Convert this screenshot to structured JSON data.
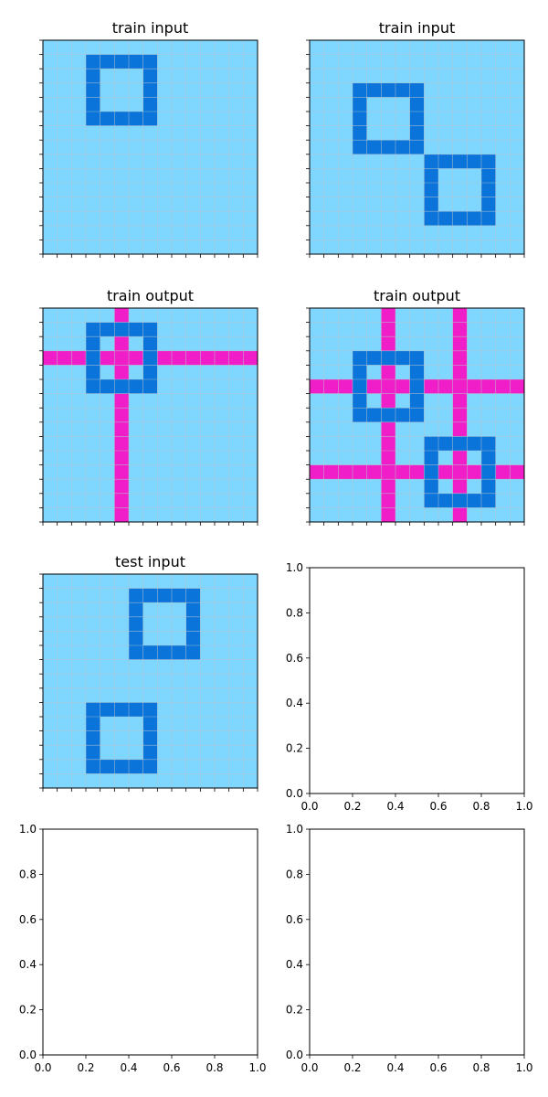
{
  "panels": [
    {
      "title": "train input",
      "kind": "grid",
      "rects": [
        [
          1,
          3,
          5,
          7
        ]
      ]
    },
    {
      "title": "train input",
      "kind": "grid",
      "rects": [
        [
          3,
          3,
          7,
          7
        ],
        [
          8,
          8,
          12,
          12
        ]
      ]
    },
    {
      "title": "train output",
      "kind": "grid",
      "rects": [
        [
          1,
          3,
          5,
          7
        ]
      ],
      "lines": {
        "rows": [
          3
        ],
        "cols": [
          5
        ]
      }
    },
    {
      "title": "train output",
      "kind": "grid",
      "rects": [
        [
          3,
          3,
          7,
          7
        ],
        [
          9,
          8,
          13,
          12
        ]
      ],
      "lines": {
        "rows": [
          5,
          11
        ],
        "cols": [
          5,
          10
        ]
      }
    },
    {
      "title": "test input",
      "kind": "grid",
      "rects": [
        [
          1,
          6,
          5,
          10
        ],
        [
          9,
          3,
          13,
          7
        ]
      ]
    },
    {
      "title": "",
      "kind": "empty"
    },
    {
      "title": "",
      "kind": "empty"
    },
    {
      "title": "",
      "kind": "empty"
    }
  ],
  "grid_size": 15,
  "colors": {
    "background": "#7fd6ff",
    "rect": "#0a74da",
    "line": "#f01ec8",
    "gridline": "#b7c3cc",
    "axis": "#000000"
  },
  "empty_axis": {
    "ticks": [
      "0.0",
      "0.2",
      "0.4",
      "0.6",
      "0.8",
      "1.0"
    ]
  }
}
